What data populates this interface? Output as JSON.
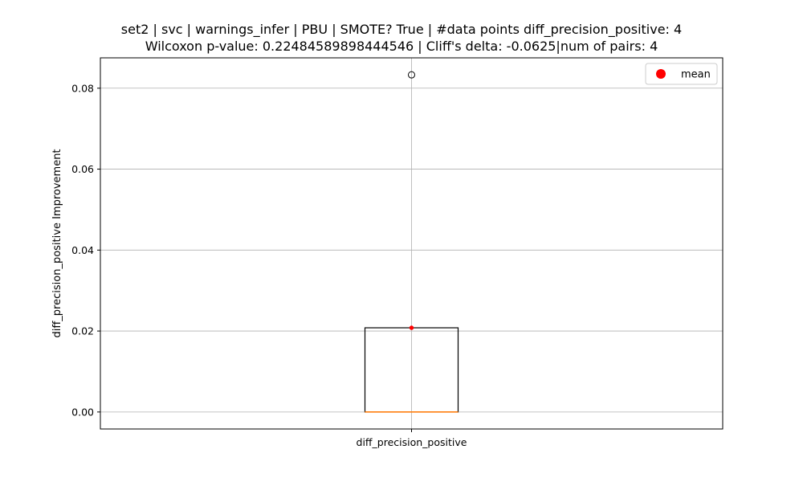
{
  "chart_data": {
    "type": "box",
    "title_lines": [
      "set2 | svc | warnings_infer | PBU | SMOTE? True | #data points diff_precision_positive: 4",
      "Wilcoxon p-value: 0.22484589898444546 | Cliff's delta: -0.0625|num of pairs: 4"
    ],
    "xlabel": "",
    "ylabel": "diff_precision_positive Improvement",
    "categories": [
      "diff_precision_positive"
    ],
    "ylim": [
      -0.0042,
      0.0875
    ],
    "yticks": [
      0.0,
      0.02,
      0.04,
      0.06,
      0.08
    ],
    "ytick_labels": [
      "0.00",
      "0.02",
      "0.04",
      "0.06",
      "0.08"
    ],
    "grid": true,
    "legend": {
      "position": "top-right",
      "entries": [
        "mean"
      ]
    },
    "boxes": [
      {
        "category": "diff_precision_positive",
        "q1": 0.0,
        "median": 0.0,
        "q3": 0.0208,
        "whisker_low": 0.0,
        "whisker_high": 0.0208,
        "mean": 0.0208,
        "outliers": [
          0.0833
        ]
      }
    ],
    "colors": {
      "box": "#000000",
      "median": "#ff7f0e",
      "mean": "#ff0000",
      "grid": "#b0b0b0"
    }
  }
}
